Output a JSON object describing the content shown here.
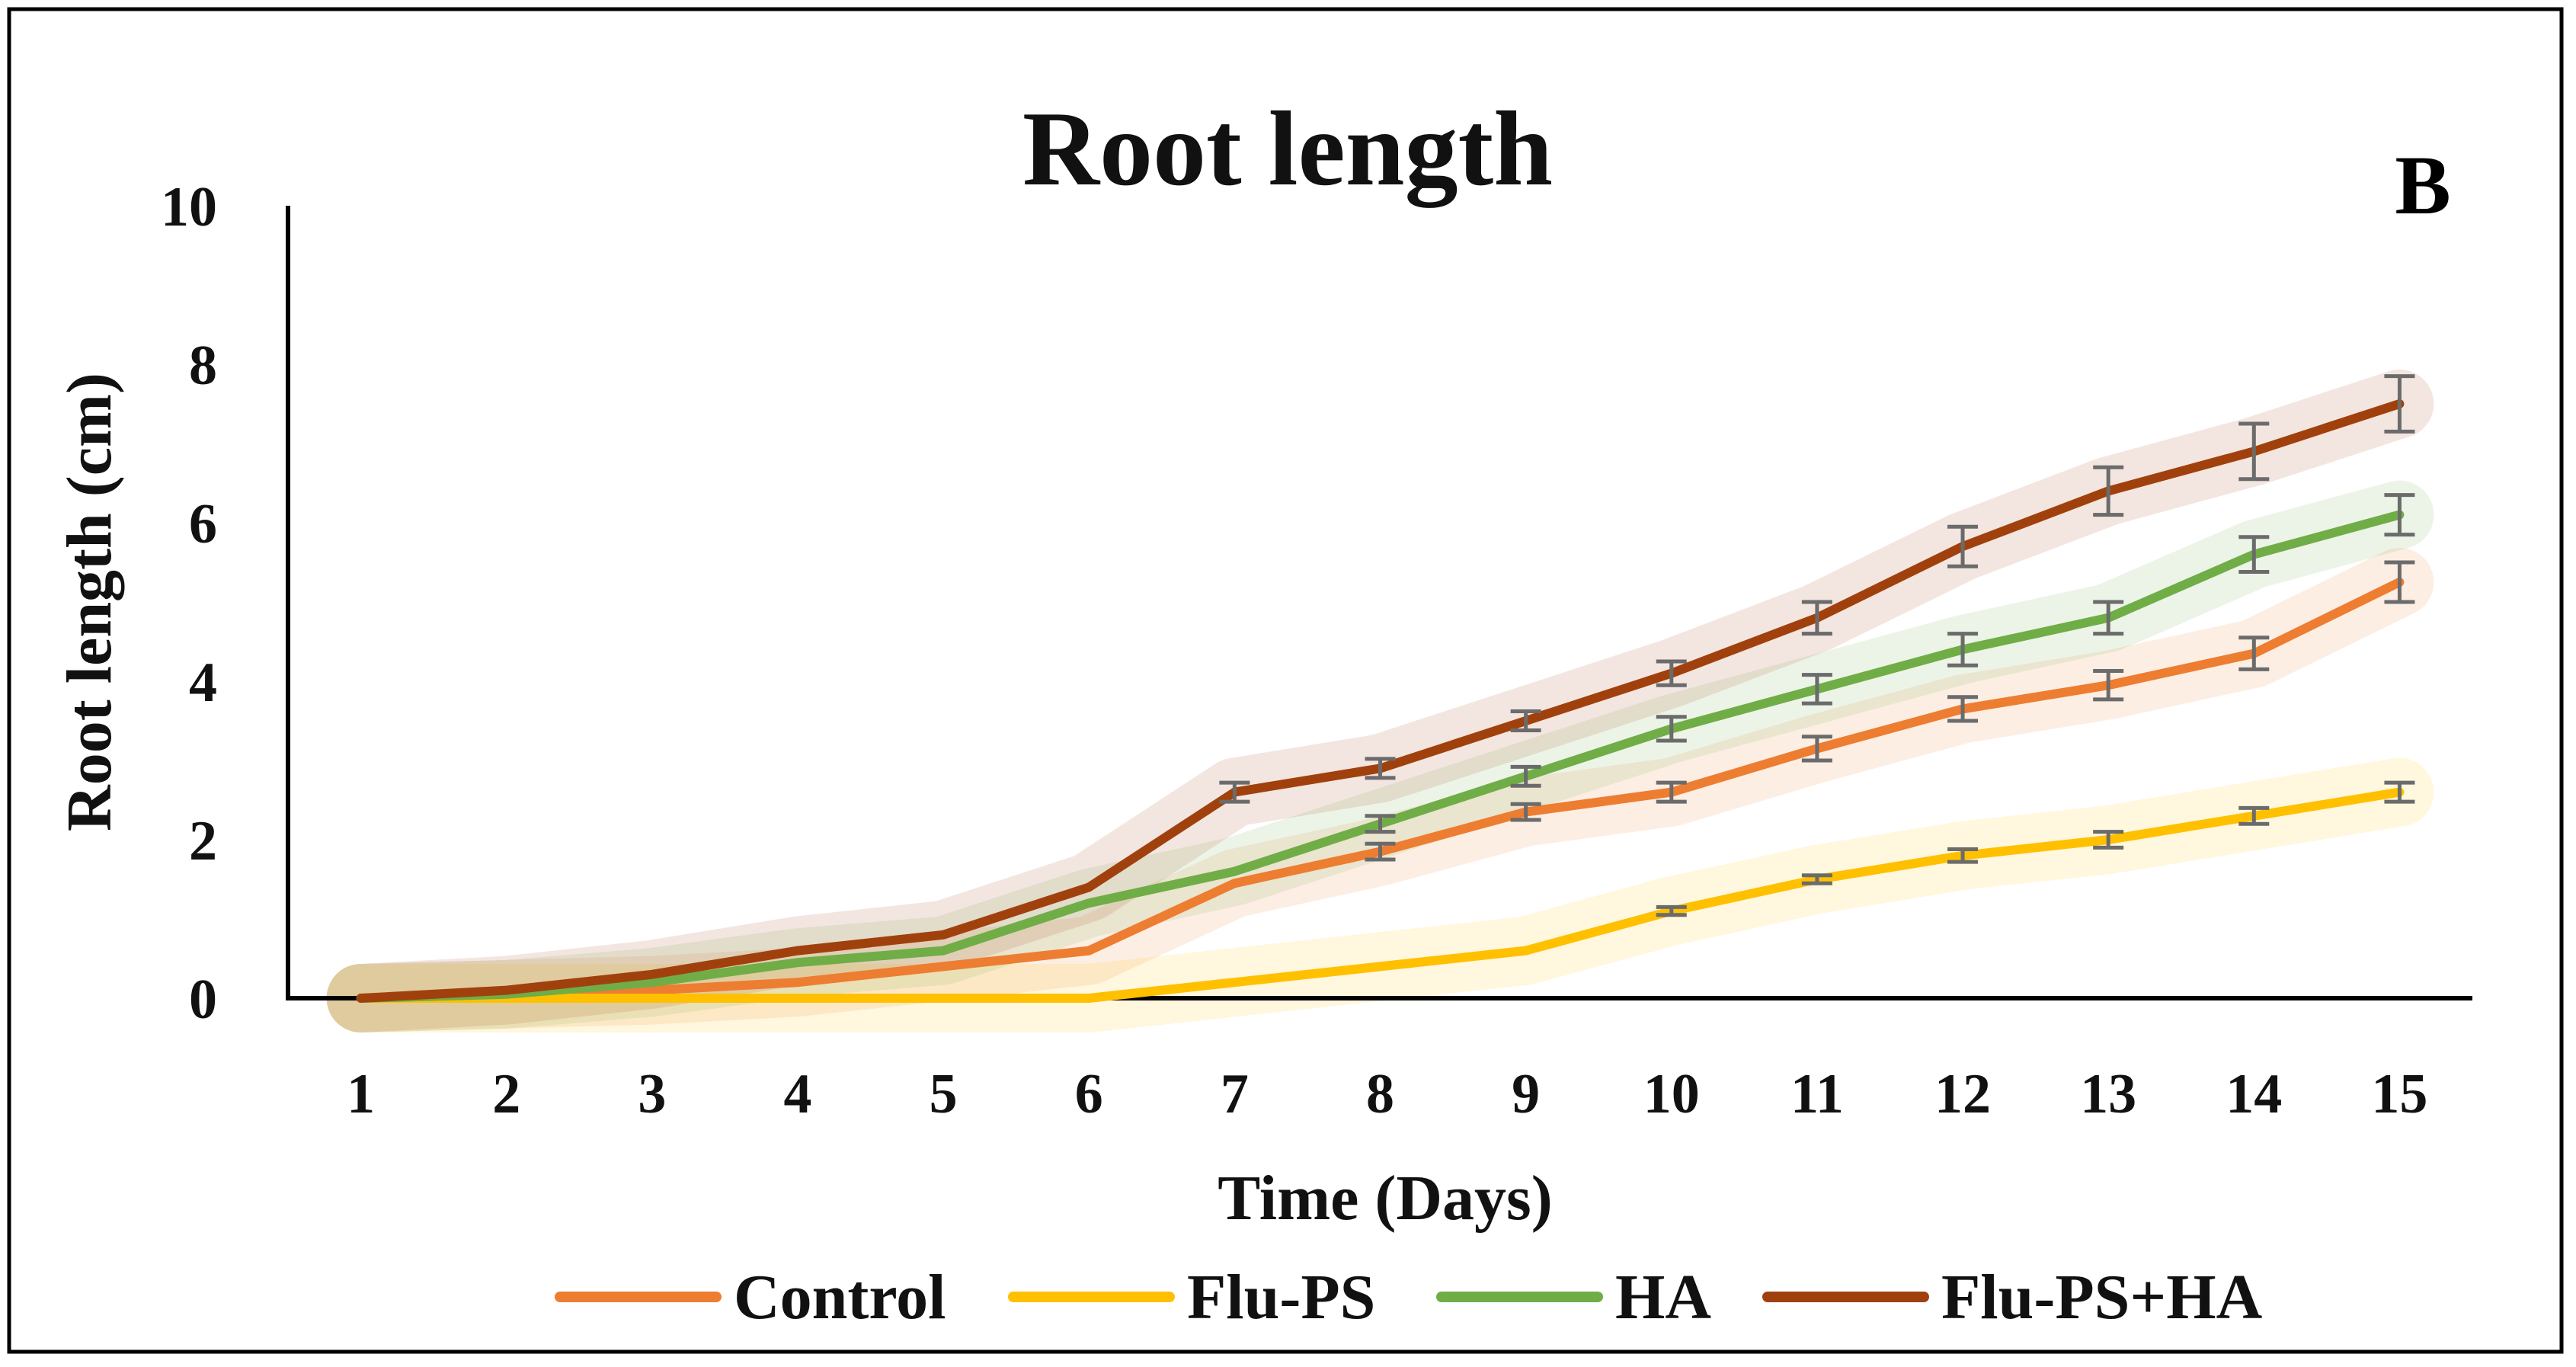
{
  "chart_data": {
    "type": "line",
    "title": "Root length",
    "panel_label": "B",
    "xlabel": "Time (Days)",
    "ylabel": "Root length (cm)",
    "categories": [
      "1",
      "2",
      "3",
      "4",
      "5",
      "6",
      "7",
      "8",
      "9",
      "10",
      "11",
      "12",
      "13",
      "14",
      "15"
    ],
    "ylim": [
      0,
      10
    ],
    "yticks": [
      "0",
      "2",
      "4",
      "6",
      "8",
      "10"
    ],
    "series": [
      {
        "name": "Control",
        "color": "#ed7d31",
        "values": [
          0,
          0.05,
          0.1,
          0.2,
          0.4,
          0.6,
          1.45,
          1.85,
          2.35,
          2.6,
          3.15,
          3.65,
          3.95,
          4.35,
          5.25
        ],
        "errors": [
          0,
          0,
          0,
          0,
          0,
          0,
          0,
          0.1,
          0.1,
          0.12,
          0.15,
          0.15,
          0.18,
          0.2,
          0.25
        ]
      },
      {
        "name": "Flu-PS",
        "color": "#ffc000",
        "values": [
          0,
          0,
          0,
          0,
          0,
          0,
          0.2,
          0.4,
          0.6,
          1.1,
          1.5,
          1.8,
          2.0,
          2.3,
          2.6
        ],
        "errors": [
          0,
          0,
          0,
          0,
          0,
          0,
          0,
          0,
          0,
          0.05,
          0.05,
          0.08,
          0.1,
          0.1,
          0.12
        ]
      },
      {
        "name": "HA",
        "color": "#70ad47",
        "values": [
          0,
          0.05,
          0.2,
          0.45,
          0.6,
          1.2,
          1.6,
          2.2,
          2.8,
          3.4,
          3.9,
          4.4,
          4.8,
          5.6,
          6.1
        ],
        "errors": [
          0,
          0,
          0,
          0,
          0,
          0,
          0,
          0.1,
          0.12,
          0.15,
          0.18,
          0.2,
          0.2,
          0.22,
          0.25
        ]
      },
      {
        "name": "Flu-PS+HA",
        "color": "#a0410d",
        "values": [
          0,
          0.1,
          0.3,
          0.6,
          0.8,
          1.4,
          2.6,
          2.9,
          3.5,
          4.1,
          4.8,
          5.7,
          6.4,
          6.9,
          7.5
        ],
        "errors": [
          0,
          0,
          0,
          0,
          0,
          0,
          0.12,
          0.12,
          0.12,
          0.15,
          0.2,
          0.25,
          0.3,
          0.35,
          0.35
        ]
      }
    ],
    "legend": {
      "placement": "bottom"
    },
    "grid": false
  }
}
